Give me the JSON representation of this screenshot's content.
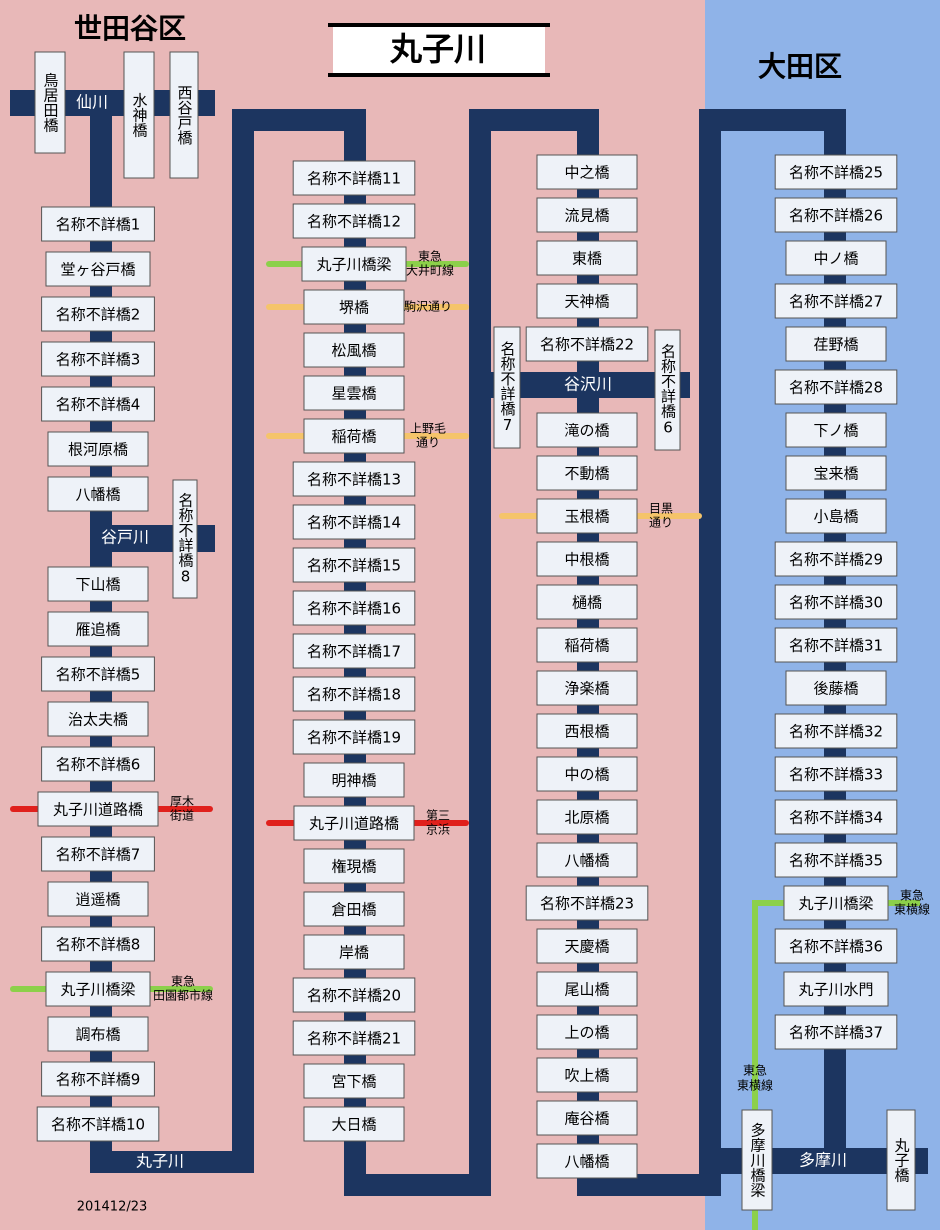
{
  "title": "丸子川",
  "districts": [
    "世田谷区",
    "大田区"
  ],
  "main_river": "丸子川",
  "tributaries": [
    "仙川",
    "谷戸川",
    "谷沢川",
    "多摩川"
  ],
  "vertical_bridges": [
    "鳥居田橋",
    "水神橋",
    "西谷戸橋",
    "名称不詳橋8",
    "名称不詳橋7",
    "名称不詳橋6",
    "多摩川橋梁",
    "丸子橋"
  ],
  "columns": [
    [
      {
        "name": "名称不詳橋1"
      },
      {
        "name": "堂ヶ谷戸橋"
      },
      {
        "name": "名称不詳橋2"
      },
      {
        "name": "名称不詳橋3"
      },
      {
        "name": "名称不詳橋4"
      },
      {
        "name": "根河原橋"
      },
      {
        "name": "八幡橋"
      },
      {
        "name": "下山橋"
      },
      {
        "name": "雁追橋"
      },
      {
        "name": "名称不詳橋5"
      },
      {
        "name": "治太夫橋"
      },
      {
        "name": "名称不詳橋6"
      },
      {
        "name": "丸子川道路橋",
        "crossing": {
          "type": "highway",
          "label": [
            "厚木",
            "街道"
          ]
        }
      },
      {
        "name": "名称不詳橋7"
      },
      {
        "name": "逍遥橋"
      },
      {
        "name": "名称不詳橋8"
      },
      {
        "name": "丸子川橋梁",
        "crossing": {
          "type": "rail",
          "label": [
            "東急",
            "田園都市線"
          ]
        }
      },
      {
        "name": "調布橋"
      },
      {
        "name": "名称不詳橋9"
      },
      {
        "name": "名称不詳橋10"
      }
    ],
    [
      {
        "name": "名称不詳橋11"
      },
      {
        "name": "名称不詳橋12"
      },
      {
        "name": "丸子川橋梁",
        "crossing": {
          "type": "rail",
          "label": [
            "東急",
            "大井町線"
          ]
        }
      },
      {
        "name": "堺橋",
        "crossing": {
          "type": "road",
          "label": [
            "駒沢通り"
          ]
        }
      },
      {
        "name": "松風橋"
      },
      {
        "name": "星雲橋"
      },
      {
        "name": "稲荷橋",
        "crossing": {
          "type": "road",
          "label": [
            "上野毛",
            "通り"
          ]
        }
      },
      {
        "name": "名称不詳橋13"
      },
      {
        "name": "名称不詳橋14"
      },
      {
        "name": "名称不詳橋15"
      },
      {
        "name": "名称不詳橋16"
      },
      {
        "name": "名称不詳橋17"
      },
      {
        "name": "名称不詳橋18"
      },
      {
        "name": "名称不詳橋19"
      },
      {
        "name": "明神橋"
      },
      {
        "name": "丸子川道路橋",
        "crossing": {
          "type": "highway",
          "label": [
            "第三",
            "京浜"
          ]
        }
      },
      {
        "name": "権現橋"
      },
      {
        "name": "倉田橋"
      },
      {
        "name": "岸橋"
      },
      {
        "name": "名称不詳橋20"
      },
      {
        "name": "名称不詳橋21"
      },
      {
        "name": "宮下橋"
      },
      {
        "name": "大日橋"
      }
    ],
    [
      {
        "name": "中之橋"
      },
      {
        "name": "流見橋"
      },
      {
        "name": "東橋"
      },
      {
        "name": "天神橋"
      },
      {
        "name": "名称不詳橋22"
      },
      {
        "name": "滝の橋"
      },
      {
        "name": "不動橋"
      },
      {
        "name": "玉根橋",
        "crossing": {
          "type": "road",
          "label": [
            "目黒",
            "通り"
          ]
        }
      },
      {
        "name": "中根橋"
      },
      {
        "name": "樋橋"
      },
      {
        "name": "稲荷橋"
      },
      {
        "name": "浄楽橋"
      },
      {
        "name": "西根橋"
      },
      {
        "name": "中の橋"
      },
      {
        "name": "北原橋"
      },
      {
        "name": "八幡橋"
      },
      {
        "name": "名称不詳橋23"
      },
      {
        "name": "天慶橋"
      },
      {
        "name": "尾山橋"
      },
      {
        "name": "上の橋"
      },
      {
        "name": "吹上橋"
      },
      {
        "name": "庵谷橋"
      },
      {
        "name": "八幡橋"
      }
    ],
    [
      {
        "name": "名称不詳橋25"
      },
      {
        "name": "名称不詳橋26"
      },
      {
        "name": "中ノ橋"
      },
      {
        "name": "名称不詳橋27"
      },
      {
        "name": "荏野橋"
      },
      {
        "name": "名称不詳橋28"
      },
      {
        "name": "下ノ橋"
      },
      {
        "name": "宝来橋"
      },
      {
        "name": "小島橋"
      },
      {
        "name": "名称不詳橋29"
      },
      {
        "name": "名称不詳橋30"
      },
      {
        "name": "名称不詳橋31"
      },
      {
        "name": "後藤橋"
      },
      {
        "name": "名称不詳橋32"
      },
      {
        "name": "名称不詳橋33"
      },
      {
        "name": "名称不詳橋34"
      },
      {
        "name": "名称不詳橋35"
      },
      {
        "name": "丸子川橋梁",
        "crossing": {
          "type": "rail",
          "label": [
            "東急",
            "東横線"
          ]
        }
      },
      {
        "name": "名称不詳橋36"
      },
      {
        "name": "丸子川水門"
      },
      {
        "name": "名称不詳橋37"
      }
    ]
  ],
  "extra_crossing": {
    "type": "rail",
    "label": [
      "東急",
      "東横線"
    ]
  },
  "date": "201412/23"
}
